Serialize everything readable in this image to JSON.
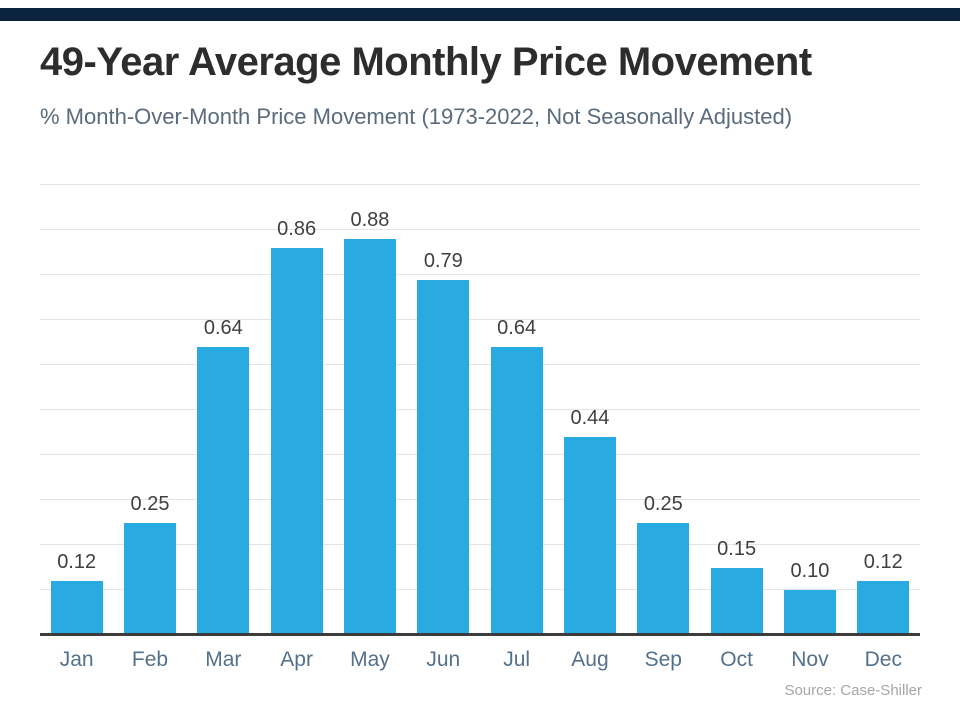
{
  "header": {
    "title": "49-Year Average Monthly Price Movement",
    "subtitle": "% Month-Over-Month Price Movement (1973-2022, Not Seasonally Adjusted)"
  },
  "chart_data": {
    "type": "bar",
    "title": "49-Year Average Monthly Price Movement",
    "subtitle": "% Month-Over-Month Price Movement (1973-2022, Not Seasonally Adjusted)",
    "categories": [
      "Jan",
      "Feb",
      "Mar",
      "Apr",
      "May",
      "Jun",
      "Jul",
      "Aug",
      "Sep",
      "Oct",
      "Nov",
      "Dec"
    ],
    "values": [
      0.12,
      0.25,
      0.64,
      0.86,
      0.88,
      0.79,
      0.64,
      0.44,
      0.25,
      0.15,
      0.1,
      0.12
    ],
    "value_labels": [
      "0.12",
      "0.25",
      "0.64",
      "0.86",
      "0.88",
      "0.79",
      "0.64",
      "0.44",
      "0.25",
      "0.15",
      "0.10",
      "0.12"
    ],
    "xlabel": "",
    "ylabel": "",
    "ylim": [
      0,
      1.0
    ],
    "grid": "horizontal",
    "gridline_step": 0.1,
    "legend": "none"
  },
  "footer": {
    "source": "Source: Case-Shiller"
  },
  "colors": {
    "stripe": "#0c2340",
    "bar": "#29abe2",
    "title-text": "#2d2d2d",
    "subtitle-text": "#5a6b7c",
    "axis-text": "#53718a",
    "value-text": "#3f3f3f",
    "gridline": "#e4e4e4",
    "axis-line": "#3c3c3c",
    "source-text": "#a6a6a6"
  }
}
